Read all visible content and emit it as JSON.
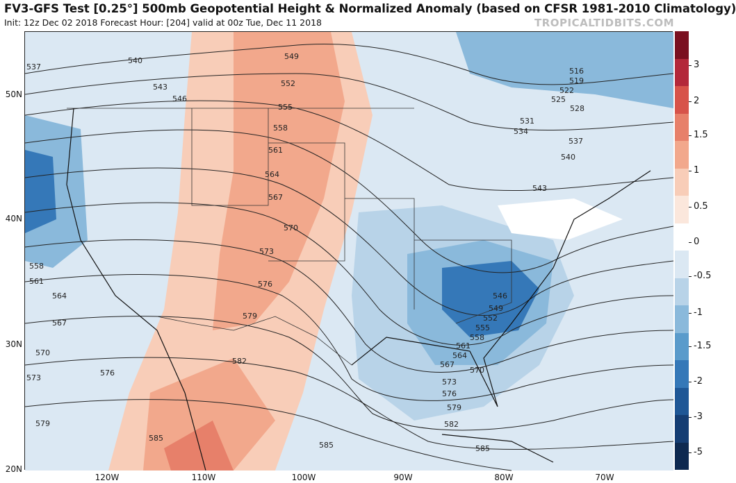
{
  "header": {
    "title": "FV3-GFS Test [0.25°] 500mb Geopotential Height & Normalized Anomaly (based on CFSR 1981-2010 Climatology)",
    "subtitle": "Init: 12z Dec 02 2018   Forecast Hour: [204]   valid at 00z Tue, Dec 11 2018",
    "brand": "TROPICALTIDBITS.COM"
  },
  "axes": {
    "lat_labels": [
      "50N",
      "40N",
      "30N",
      "20N"
    ],
    "lon_labels": [
      "120W",
      "110W",
      "100W",
      "90W",
      "80W",
      "70W"
    ]
  },
  "colorbar": {
    "ticks": [
      "3",
      "2",
      "1.5",
      "1",
      "0.5",
      "0",
      "-0.5",
      "-1",
      "-1.5",
      "-2",
      "-3",
      "-5"
    ],
    "colors": [
      "#7a1020",
      "#b3283a",
      "#d7534a",
      "#e7806a",
      "#f2a88c",
      "#f8cdb8",
      "#fbe7dc",
      "#ffffff",
      "#dbe8f3",
      "#b8d3e8",
      "#8ab9db",
      "#5a9bcb",
      "#3578b8",
      "#1f5796",
      "#153d73",
      "#0e2950"
    ]
  },
  "contours": {
    "labels": [
      "537",
      "540",
      "543",
      "546",
      "549",
      "552",
      "555",
      "558",
      "561",
      "564",
      "567",
      "570",
      "573",
      "576",
      "579",
      "582",
      "585",
      "516",
      "519",
      "522",
      "525",
      "528",
      "531",
      "534"
    ],
    "min_label": "546"
  }
}
